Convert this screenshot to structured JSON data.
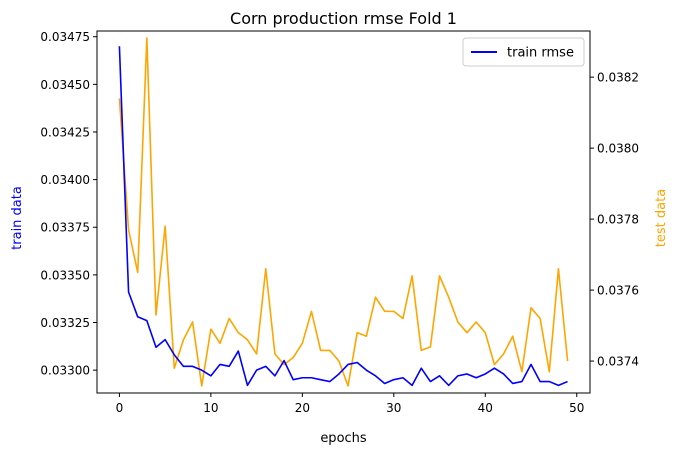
{
  "chart_data": {
    "type": "line",
    "title": "Corn production rmse Fold 1",
    "xlabel": "epochs",
    "ylabel_left": "train data",
    "ylabel_right": "test data",
    "x": [
      0,
      1,
      2,
      3,
      4,
      5,
      6,
      7,
      8,
      9,
      10,
      11,
      12,
      13,
      14,
      15,
      16,
      17,
      18,
      19,
      20,
      21,
      22,
      23,
      24,
      25,
      26,
      27,
      28,
      29,
      30,
      31,
      32,
      33,
      34,
      35,
      36,
      37,
      38,
      39,
      40,
      41,
      42,
      43,
      44,
      45,
      46,
      47,
      48,
      49
    ],
    "xlim": [
      -2.45,
      51.45
    ],
    "x_ticks": [
      0,
      10,
      20,
      30,
      40,
      50
    ],
    "left_axis": {
      "ylim": [
        0.03288,
        0.03478
      ],
      "ticks": [
        0.033,
        0.03325,
        0.0335,
        0.03375,
        0.034,
        0.03425,
        0.0345,
        0.03475
      ],
      "tick_labels": [
        "0.03300",
        "0.03325",
        "0.03350",
        "0.03375",
        "0.03400",
        "0.03425",
        "0.03450",
        "0.03475"
      ],
      "color": "#0000ff"
    },
    "right_axis": {
      "ylim": [
        0.03731,
        0.03833
      ],
      "ticks": [
        0.0374,
        0.0376,
        0.0378,
        0.038,
        0.0382
      ],
      "tick_labels": [
        "0.0374",
        "0.0376",
        "0.0378",
        "0.0380",
        "0.0382"
      ],
      "color": "#ffa500"
    },
    "series": [
      {
        "name": "train rmse",
        "axis": "left",
        "color": "#0000ff",
        "values": [
          0.0347,
          0.03341,
          0.03328,
          0.03326,
          0.03312,
          0.03316,
          0.03308,
          0.03302,
          0.03302,
          0.033,
          0.03297,
          0.03303,
          0.03302,
          0.0331,
          0.03292,
          0.033,
          0.03302,
          0.03297,
          0.03305,
          0.03295,
          0.03296,
          0.03296,
          0.03295,
          0.03294,
          0.03298,
          0.03303,
          0.03304,
          0.033,
          0.03297,
          0.03293,
          0.03295,
          0.03296,
          0.03292,
          0.03301,
          0.03294,
          0.03297,
          0.03292,
          0.03297,
          0.03298,
          0.03296,
          0.03298,
          0.03301,
          0.03298,
          0.03293,
          0.03294,
          0.03303,
          0.03294,
          0.03294,
          0.03292,
          0.03294
        ]
      },
      {
        "name": "",
        "axis": "right",
        "color": "#ffa500",
        "values": [
          0.03814,
          0.03777,
          0.03765,
          0.03831,
          0.03753,
          0.03778,
          0.03738,
          0.03746,
          0.03751,
          0.03733,
          0.03749,
          0.03745,
          0.03752,
          0.03748,
          0.03746,
          0.03742,
          0.03766,
          0.03742,
          0.03739,
          0.03741,
          0.03745,
          0.03754,
          0.03743,
          0.03743,
          0.0374,
          0.03733,
          0.03748,
          0.03747,
          0.03758,
          0.03754,
          0.03754,
          0.03752,
          0.03764,
          0.03743,
          0.03744,
          0.03764,
          0.03758,
          0.03751,
          0.03748,
          0.03751,
          0.03748,
          0.03739,
          0.03742,
          0.03747,
          0.03737,
          0.03755,
          0.03752,
          0.03737,
          0.03766,
          0.0374
        ]
      }
    ],
    "legend": {
      "position": "top-right",
      "entries": [
        "train rmse"
      ]
    },
    "grid": false
  }
}
